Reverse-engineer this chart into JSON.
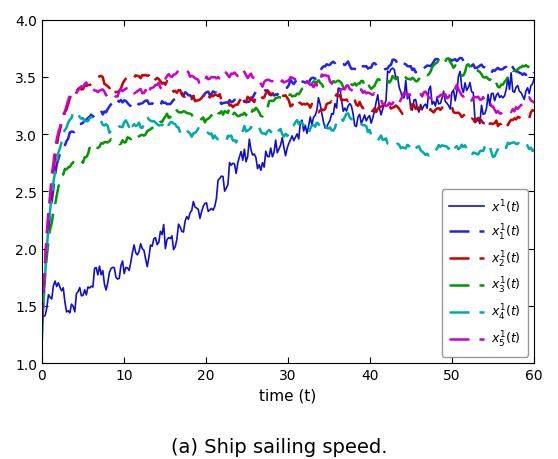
{
  "title": "(a) Ship sailing speed.",
  "xlabel": "time (t)",
  "xlim": [
    0,
    60
  ],
  "ylim": [
    1,
    4
  ],
  "yticks": [
    1,
    1.5,
    2,
    2.5,
    3,
    3.5,
    4
  ],
  "xticks": [
    0,
    10,
    20,
    30,
    40,
    50,
    60
  ],
  "legend_labels": [
    "$x^1(t)$",
    "$x_1^1(t)$",
    "$x_2^1(t)$",
    "$x_3^1(t)$",
    "$x_4^1(t)$",
    "$x_5^1(t)$"
  ],
  "line_colors": [
    "#1010cc",
    "#2222ee",
    "#cc0000",
    "#009900",
    "#00aaaa",
    "#cc00cc"
  ],
  "line_styles": [
    "-",
    "--",
    "--",
    "--",
    "--",
    "--"
  ],
  "line_widths": [
    1.2,
    1.8,
    1.8,
    1.8,
    1.8,
    1.8
  ],
  "caption_fontsize": 14,
  "legend_fontsize": 9,
  "axes_fontsize": 11
}
